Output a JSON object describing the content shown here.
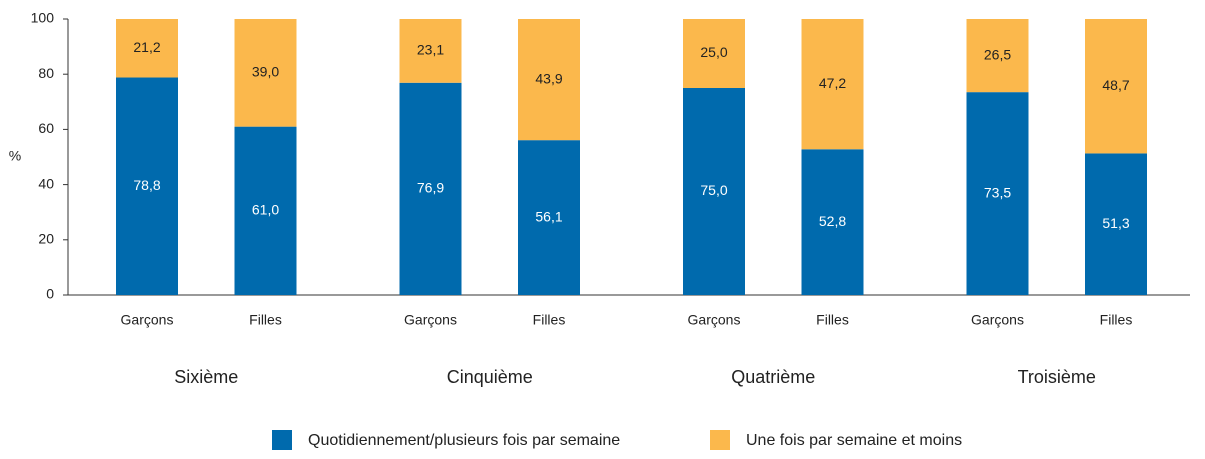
{
  "chart_data": {
    "type": "stacked_bar",
    "ylabel": "%",
    "categories": [
      "Garçons",
      "Filles",
      "Garçons",
      "Filles",
      "Garçons",
      "Filles",
      "Garçons",
      "Filles"
    ],
    "groups": [
      "Sixième",
      "Cinquième",
      "Quatrième",
      "Troisième"
    ],
    "series": [
      {
        "name": "Quotidiennement/plusieurs fois par semaine",
        "color": "#006aad",
        "values": [
          78.8,
          61.0,
          76.9,
          56.1,
          75.0,
          52.8,
          73.5,
          51.3
        ],
        "value_labels": [
          "78,8",
          "61,0",
          "76,9",
          "56,1",
          "75,0",
          "52,8",
          "73,5",
          "51,3"
        ]
      },
      {
        "name": "Une fois par semaine et moins",
        "color": "#fbb84c",
        "values": [
          21.2,
          39.0,
          23.1,
          43.9,
          25.0,
          47.2,
          26.5,
          48.7
        ],
        "value_labels": [
          "21,2",
          "39,0",
          "23,1",
          "43,9",
          "25,0",
          "47,2",
          "26,5",
          "48,7"
        ]
      }
    ],
    "ylim": [
      0,
      100
    ],
    "yticks": [
      0,
      20,
      40,
      60,
      80,
      100
    ],
    "grid": false,
    "legend": "bottom"
  }
}
